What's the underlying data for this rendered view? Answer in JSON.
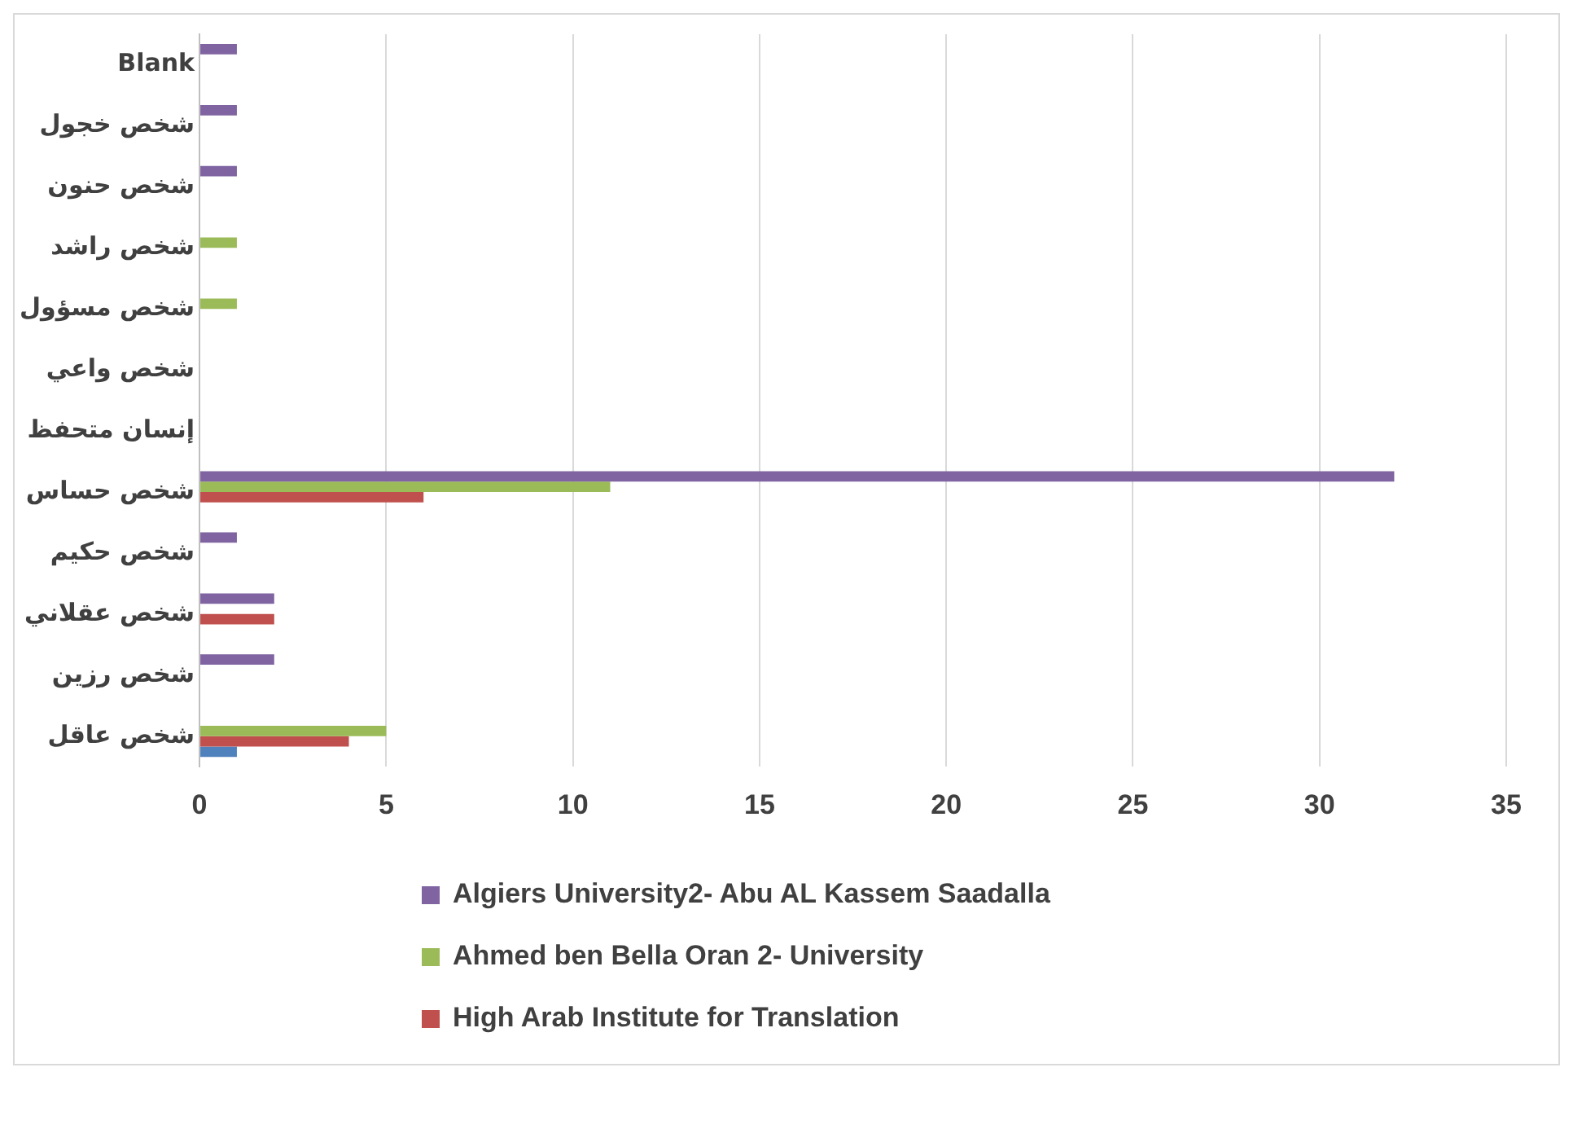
{
  "chart_data": {
    "type": "bar",
    "orientation": "horizontal",
    "categories": [
      "Blank",
      "شخص خجول",
      "شخص حنون",
      "شخص راشد",
      "شخص مسؤول",
      "شخص واعي",
      "إنسان متحفظ",
      "شخص حساس",
      "شخص حكيم",
      "شخص عقلاني",
      "شخص رزين",
      "شخص عاقل"
    ],
    "series": [
      {
        "name": "Algiers University2- Abu AL Kassem Saadalla",
        "color": "#8064a2",
        "values": [
          1,
          1,
          1,
          null,
          null,
          null,
          null,
          32,
          1,
          2,
          2,
          null
        ]
      },
      {
        "name": "Ahmed ben Bella Oran 2- University",
        "color": "#9bbb59",
        "values": [
          null,
          null,
          null,
          1,
          1,
          null,
          null,
          11,
          null,
          null,
          null,
          5
        ]
      },
      {
        "name": "High Arab Institute for Translation",
        "color": "#c0504d",
        "values": [
          null,
          null,
          null,
          null,
          null,
          null,
          null,
          6,
          null,
          2,
          null,
          4
        ]
      },
      {
        "color": "#4f81bd",
        "values": [
          null,
          null,
          null,
          null,
          null,
          null,
          null,
          null,
          null,
          null,
          null,
          1
        ]
      }
    ],
    "xlim": [
      0,
      35
    ],
    "xticks": [
      0,
      5,
      10,
      15,
      20,
      25,
      30,
      35
    ],
    "grid": "x",
    "legend": "bottom"
  }
}
